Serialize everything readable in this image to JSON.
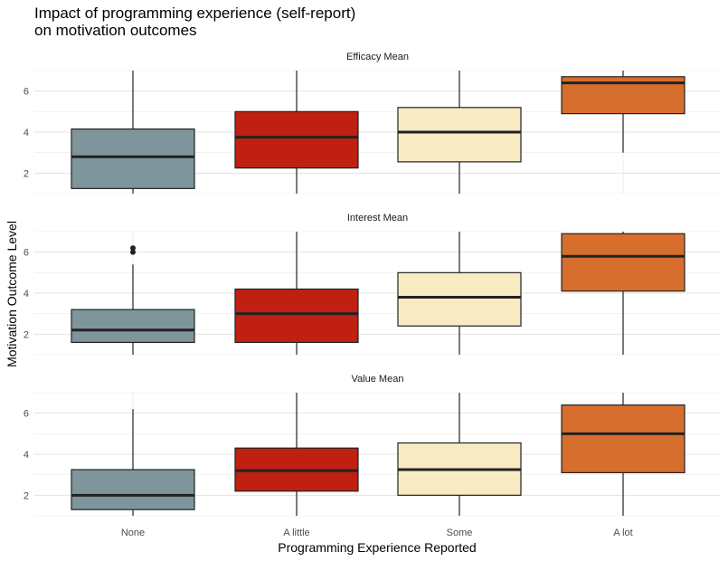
{
  "title_lines": [
    "Impact of programming experience (self-report)",
    "on motivation outcomes"
  ],
  "chart_data": {
    "type": "boxplot",
    "title": "Impact of programming experience (self-report) on motivation outcomes",
    "xlabel": "Programming Experience Reported",
    "ylabel": "Motivation Outcome Level",
    "categories": [
      "None",
      "A little",
      "Some",
      "A lot"
    ],
    "colors": [
      "#7f959c",
      "#bf2012",
      "#f8ebc4",
      "#d66e2d"
    ],
    "ylim": [
      1,
      7
    ],
    "yticks": [
      2,
      4,
      6
    ],
    "grid": true,
    "facets": [
      {
        "label": "Efficacy Mean",
        "boxes": [
          {
            "category": "None",
            "min": 1.0,
            "q1": 1.25,
            "median": 2.8,
            "q3": 4.15,
            "max": 7.0,
            "outliers": []
          },
          {
            "category": "A little",
            "min": 1.0,
            "q1": 2.25,
            "median": 3.75,
            "q3": 5.0,
            "max": 7.0,
            "outliers": []
          },
          {
            "category": "Some",
            "min": 1.0,
            "q1": 2.55,
            "median": 4.0,
            "q3": 5.2,
            "max": 7.0,
            "outliers": []
          },
          {
            "category": "A lot",
            "min": 3.0,
            "q1": 4.9,
            "median": 6.4,
            "q3": 6.7,
            "max": 7.0,
            "outliers": []
          }
        ]
      },
      {
        "label": "Interest Mean",
        "boxes": [
          {
            "category": "None",
            "min": 1.0,
            "q1": 1.6,
            "median": 2.2,
            "q3": 3.2,
            "max": 5.4,
            "outliers": [
              6.0,
              6.2
            ]
          },
          {
            "category": "A little",
            "min": 1.0,
            "q1": 1.6,
            "median": 3.0,
            "q3": 4.2,
            "max": 7.0,
            "outliers": []
          },
          {
            "category": "Some",
            "min": 1.0,
            "q1": 2.4,
            "median": 3.8,
            "q3": 5.0,
            "max": 7.0,
            "outliers": []
          },
          {
            "category": "A lot",
            "min": 1.0,
            "q1": 4.1,
            "median": 5.8,
            "q3": 6.9,
            "max": 7.0,
            "outliers": []
          }
        ]
      },
      {
        "label": "Value Mean",
        "boxes": [
          {
            "category": "None",
            "min": 1.0,
            "q1": 1.3,
            "median": 2.0,
            "q3": 3.25,
            "max": 6.2,
            "outliers": []
          },
          {
            "category": "A little",
            "min": 1.0,
            "q1": 2.2,
            "median": 3.2,
            "q3": 4.3,
            "max": 7.0,
            "outliers": []
          },
          {
            "category": "Some",
            "min": 1.0,
            "q1": 2.0,
            "median": 3.25,
            "q3": 4.55,
            "max": 7.0,
            "outliers": []
          },
          {
            "category": "A lot",
            "min": 1.0,
            "q1": 3.1,
            "median": 5.0,
            "q3": 6.4,
            "max": 7.0,
            "outliers": []
          }
        ]
      }
    ]
  }
}
